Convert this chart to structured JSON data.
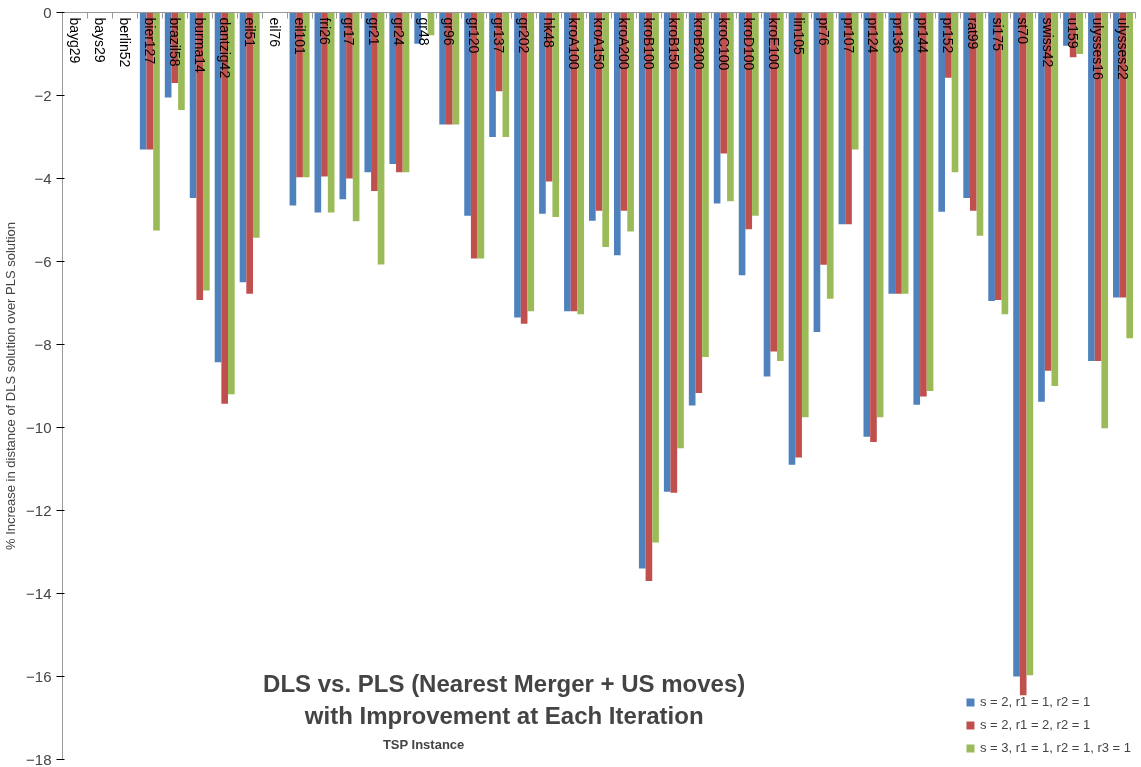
{
  "chart_data": {
    "type": "bar",
    "title": "DLS vs. PLS (Nearest Merger + US moves)\nwith Improvement at Each Iteration",
    "xlabel": "TSP Instance",
    "ylabel": "% Increase in distance of DLS solution over PLS solution",
    "categories": [
      "bayg29",
      "bays29",
      "berlin52",
      "bier127",
      "brazil58",
      "burma14",
      "dantzig42",
      "eil51",
      "eil76",
      "eil101",
      "fri26",
      "gr17",
      "gr21",
      "gr24",
      "gr48",
      "gr96",
      "gr120",
      "gr137",
      "gr202",
      "hk48",
      "kroA100",
      "kroA150",
      "kroA200",
      "kroB100",
      "kroB150",
      "kroB200",
      "kroC100",
      "kroD100",
      "kroE100",
      "lin105",
      "pr76",
      "pr107",
      "pr124",
      "pr136",
      "pr144",
      "pr152",
      "rat99",
      "si175",
      "st70",
      "swiss42",
      "u159",
      "ulysses16",
      "ulysses22"
    ],
    "series": [
      {
        "name": "s = 2, r1 = 1, r2 = 1",
        "color": "#4f81bd",
        "values": [
          0,
          0,
          0,
          -3.3,
          -2.05,
          -4.47,
          -8.43,
          -6.5,
          0,
          -4.65,
          -4.82,
          -4.5,
          -3.85,
          -3.65,
          -0.75,
          -2.7,
          -4.9,
          -3.0,
          -7.35,
          -4.85,
          -7.2,
          -5.02,
          -5.85,
          -13.4,
          -11.55,
          -9.47,
          -4.6,
          -6.33,
          -8.77,
          -10.9,
          -7.7,
          -5.1,
          -10.22,
          -6.78,
          -9.45,
          -4.8,
          -4.47,
          -6.95,
          -16.0,
          -9.38,
          -0.8,
          -8.4,
          -6.87
        ]
      },
      {
        "name": "s = 2, r1 = 2, r2 = 1",
        "color": "#c0504d",
        "values": [
          0,
          0,
          0,
          -3.3,
          -1.7,
          -6.93,
          -9.43,
          -6.78,
          0,
          -3.97,
          -3.95,
          -4.0,
          -4.3,
          -3.85,
          null,
          -2.7,
          -5.93,
          -1.9,
          -7.5,
          -4.07,
          -7.2,
          -4.78,
          -4.78,
          -13.7,
          -11.57,
          -9.17,
          -3.4,
          -5.22,
          -8.17,
          -10.72,
          -6.08,
          -5.1,
          -10.35,
          -6.78,
          -9.25,
          -1.57,
          -4.78,
          -6.93,
          -16.45,
          -8.63,
          -1.08,
          -8.4,
          -6.87
        ]
      },
      {
        "name": "s = 3, r1 = 1, r2 = 1, r3 = 1",
        "color": "#9bbb59",
        "values": [
          0,
          0,
          0,
          -5.25,
          -2.35,
          -6.7,
          -9.2,
          -5.43,
          0,
          -3.97,
          -4.82,
          -5.03,
          -6.07,
          -3.85,
          -0.55,
          -2.7,
          -5.93,
          -3.0,
          -7.2,
          -4.93,
          -7.27,
          -5.65,
          -5.28,
          -12.77,
          -10.5,
          -8.3,
          -4.55,
          -4.9,
          -8.4,
          -9.75,
          -6.9,
          -3.3,
          -9.75,
          -6.78,
          -9.12,
          -3.85,
          -5.38,
          -7.27,
          -15.97,
          -9.0,
          -1.0,
          -10.02,
          -7.85
        ]
      }
    ],
    "ylim": [
      -18,
      0
    ],
    "yticks": [
      -18,
      -16,
      -14,
      -12,
      -10,
      -8,
      -6,
      -4,
      -2,
      0
    ],
    "grid": false,
    "legend": "bottom right"
  }
}
